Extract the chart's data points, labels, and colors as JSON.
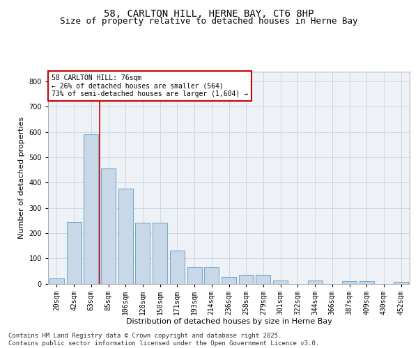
{
  "title_line1": "58, CARLTON HILL, HERNE BAY, CT6 8HP",
  "title_line2": "Size of property relative to detached houses in Herne Bay",
  "xlabel": "Distribution of detached houses by size in Herne Bay",
  "ylabel": "Number of detached properties",
  "categories": [
    "20sqm",
    "42sqm",
    "63sqm",
    "85sqm",
    "106sqm",
    "128sqm",
    "150sqm",
    "171sqm",
    "193sqm",
    "214sqm",
    "236sqm",
    "258sqm",
    "279sqm",
    "301sqm",
    "322sqm",
    "344sqm",
    "366sqm",
    "387sqm",
    "409sqm",
    "430sqm",
    "452sqm"
  ],
  "values": [
    20,
    245,
    590,
    455,
    375,
    240,
    240,
    130,
    65,
    65,
    25,
    35,
    35,
    13,
    0,
    13,
    0,
    10,
    10,
    0,
    8
  ],
  "bar_color": "#c8d8e8",
  "bar_edge_color": "#7aaac8",
  "bar_edge_width": 0.8,
  "grid_color": "#c8d4e0",
  "bg_color": "#eef2f7",
  "vline_color": "#cc0000",
  "annotation_text": "58 CARLTON HILL: 76sqm\n← 26% of detached houses are smaller (564)\n73% of semi-detached houses are larger (1,604) →",
  "annotation_box_color": "#ffffff",
  "annotation_edge_color": "#cc0000",
  "ylim": [
    0,
    840
  ],
  "yticks": [
    0,
    100,
    200,
    300,
    400,
    500,
    600,
    700,
    800
  ],
  "footnote": "Contains HM Land Registry data © Crown copyright and database right 2025.\nContains public sector information licensed under the Open Government Licence v3.0.",
  "title_fontsize": 10,
  "subtitle_fontsize": 9,
  "axis_label_fontsize": 8,
  "tick_fontsize": 7,
  "footnote_fontsize": 6.5
}
